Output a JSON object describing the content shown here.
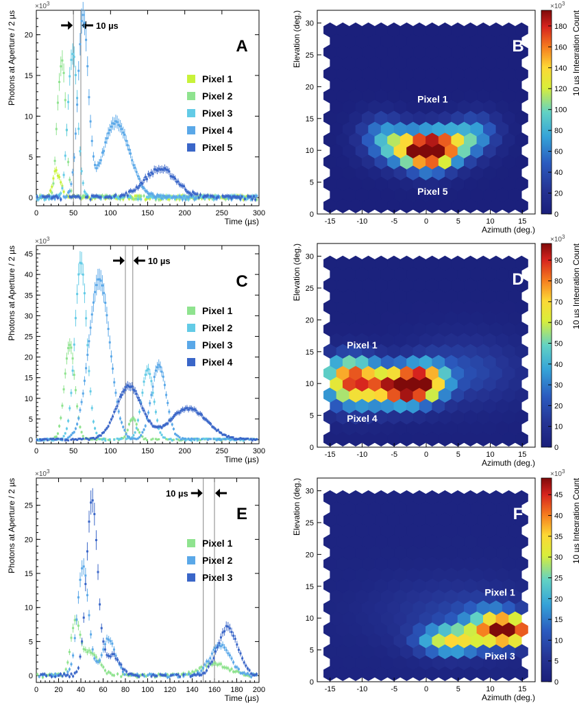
{
  "chart_data": [
    {
      "id": "A",
      "type": "scatter",
      "panel_label": "A",
      "xlabel": "Time (µs)",
      "ylabel": "Photons at Aperture / 2 µs",
      "exponent": "×10",
      "exponent_power": "3",
      "xlim": [
        0,
        300
      ],
      "ylim": [
        -1,
        23
      ],
      "xticks": [
        0,
        50,
        100,
        150,
        200,
        250,
        300
      ],
      "yticks": [
        0,
        5,
        10,
        15,
        20
      ],
      "window_label": "10 µs",
      "window": [
        50,
        60
      ],
      "series": [
        {
          "name": "Pixel 1",
          "color": "#c8f23a",
          "peaks": [
            [
              26,
              3.2,
              4
            ],
            [
              33,
              1.2,
              3
            ]
          ]
        },
        {
          "name": "Pixel 2",
          "color": "#8fe38f",
          "peaks": [
            [
              35,
              16.5,
              5
            ],
            [
              28,
              4,
              3
            ]
          ]
        },
        {
          "name": "Pixel 3",
          "color": "#63cbe6",
          "peaks": [
            [
              50,
              17,
              6
            ],
            [
              43,
              3,
              4
            ]
          ]
        },
        {
          "name": "Pixel 4",
          "color": "#5aa8e8",
          "peaks": [
            [
              63,
              22,
              7
            ],
            [
              108,
              9.3,
              18
            ]
          ]
        },
        {
          "name": "Pixel 5",
          "color": "#3a66c8",
          "peaks": [
            [
              167,
              3.5,
              22
            ]
          ]
        }
      ]
    },
    {
      "id": "B",
      "type": "heatmap",
      "panel_label": "B",
      "xlabel": "Azimuth (deg.)",
      "ylabel": "Elevation (deg.)",
      "xlim": [
        -17,
        17
      ],
      "ylim": [
        0,
        32
      ],
      "xticks": [
        -15,
        -10,
        -5,
        0,
        5,
        10,
        15
      ],
      "yticks": [
        0,
        5,
        10,
        15,
        20,
        25,
        30
      ],
      "colorbar_label": "10 µs Integration Count",
      "colorbar_exponent": "×10",
      "colorbar_exponent_power": "3",
      "colorbar_max": 195,
      "colorbar_ticks": [
        0,
        20,
        40,
        60,
        80,
        100,
        120,
        140,
        160,
        180
      ],
      "pixel_labels": [
        "Pixel 1",
        "Pixel 5"
      ],
      "blobs": [
        [
          -3,
          10.5,
          3.5,
          2.0,
          110
        ],
        [
          0.5,
          9.5,
          2.5,
          2.0,
          140
        ],
        [
          4,
          11,
          3.0,
          2.0,
          100
        ],
        [
          8,
          13,
          2.5,
          2.0,
          50
        ],
        [
          -7,
          13,
          2.5,
          2.0,
          45
        ]
      ]
    },
    {
      "id": "C",
      "type": "scatter",
      "panel_label": "C",
      "xlabel": "Time (µs)",
      "ylabel": "Photons at Aperture / 2 µs",
      "exponent": "×10",
      "exponent_power": "3",
      "xlim": [
        0,
        300
      ],
      "ylim": [
        -1,
        47
      ],
      "xticks": [
        0,
        50,
        100,
        150,
        200,
        250,
        300
      ],
      "yticks": [
        0,
        5,
        10,
        15,
        20,
        25,
        30,
        35,
        40,
        45
      ],
      "window_label": "10 µs",
      "window": [
        120,
        130
      ],
      "series": [
        {
          "name": "Pixel 1",
          "color": "#8fe38f",
          "peaks": [
            [
              45,
              23,
              7
            ],
            [
              130,
              5,
              6
            ]
          ]
        },
        {
          "name": "Pixel 2",
          "color": "#63cbe6",
          "peaks": [
            [
              60,
              43,
              8
            ],
            [
              150,
              17,
              8
            ]
          ]
        },
        {
          "name": "Pixel 3",
          "color": "#5aa8e8",
          "peaks": [
            [
              85,
              39,
              14
            ],
            [
              165,
              18,
              10
            ]
          ]
        },
        {
          "name": "Pixel 4",
          "color": "#3a66c8",
          "peaks": [
            [
              125,
              13,
              17
            ],
            [
              205,
              7.5,
              25
            ]
          ]
        }
      ]
    },
    {
      "id": "D",
      "type": "heatmap",
      "panel_label": "D",
      "xlabel": "Azimuth (deg.)",
      "ylabel": "Elevation (deg.)",
      "xlim": [
        -17,
        17
      ],
      "ylim": [
        0,
        32
      ],
      "xticks": [
        -15,
        -10,
        -5,
        0,
        5,
        10,
        15
      ],
      "yticks": [
        0,
        5,
        10,
        15,
        20,
        25,
        30
      ],
      "colorbar_label": "10 µs Integration Count",
      "colorbar_exponent": "×10",
      "colorbar_exponent_power": "3",
      "colorbar_max": 98,
      "colorbar_ticks": [
        0,
        10,
        20,
        30,
        40,
        50,
        60,
        70,
        80,
        90
      ],
      "pixel_labels": [
        "Pixel 1",
        "Pixel 4"
      ],
      "blobs": [
        [
          -11,
          9.5,
          3.5,
          2.5,
          65
        ],
        [
          -3.5,
          9.5,
          3.0,
          2.0,
          90
        ],
        [
          0,
          10.5,
          2.5,
          2.0,
          55
        ],
        [
          6,
          12,
          6.0,
          3.5,
          18
        ],
        [
          -12,
          12,
          3.0,
          2.0,
          38
        ]
      ]
    },
    {
      "id": "E",
      "type": "scatter",
      "panel_label": "E",
      "xlabel": "Time (µs)",
      "ylabel": "Photons at Aperture / 2 µs",
      "exponent": "×10",
      "exponent_power": "3",
      "xlim": [
        0,
        200
      ],
      "ylim": [
        -1,
        29
      ],
      "xticks": [
        0,
        20,
        40,
        60,
        80,
        100,
        120,
        140,
        160,
        180,
        200
      ],
      "yticks": [
        0,
        5,
        10,
        15,
        20,
        25
      ],
      "window_label": "10 µs",
      "window": [
        150,
        160
      ],
      "series": [
        {
          "name": "Pixel 1",
          "color": "#8fe38f",
          "peaks": [
            [
              35,
              7.5,
              4
            ],
            [
              48,
              3.5,
              8
            ],
            [
              160,
              1.8,
              12
            ]
          ]
        },
        {
          "name": "Pixel 2",
          "color": "#5aa8e8",
          "peaks": [
            [
              42,
              16,
              5
            ],
            [
              65,
              5.5,
              6
            ],
            [
              165,
              4.5,
              9
            ]
          ]
        },
        {
          "name": "Pixel 3",
          "color": "#3a66c8",
          "peaks": [
            [
              50,
              26,
              5
            ],
            [
              68,
              3,
              7
            ],
            [
              172,
              7.1,
              9
            ]
          ]
        }
      ]
    },
    {
      "id": "F",
      "type": "heatmap",
      "panel_label": "F",
      "xlabel": "Azimuth (deg.)",
      "ylabel": "Elevation (deg.)",
      "xlim": [
        -17,
        17
      ],
      "ylim": [
        0,
        32
      ],
      "xticks": [
        -15,
        -10,
        -5,
        0,
        5,
        10,
        15
      ],
      "yticks": [
        0,
        5,
        10,
        15,
        20,
        25,
        30
      ],
      "colorbar_label": "10 µs Integration Count",
      "colorbar_exponent": "×10",
      "colorbar_exponent_power": "3",
      "colorbar_max": 49,
      "colorbar_ticks": [
        0,
        5,
        10,
        15,
        20,
        25,
        30,
        35,
        40,
        45
      ],
      "pixel_labels": [
        "Pixel 1",
        "Pixel 3"
      ],
      "blobs": [
        [
          13,
          8,
          2.5,
          1.5,
          45
        ],
        [
          4,
          6.5,
          3.5,
          1.5,
          30
        ],
        [
          10,
          9,
          3.0,
          2.0,
          20
        ],
        [
          4,
          11,
          8.0,
          3.5,
          6
        ]
      ]
    }
  ]
}
